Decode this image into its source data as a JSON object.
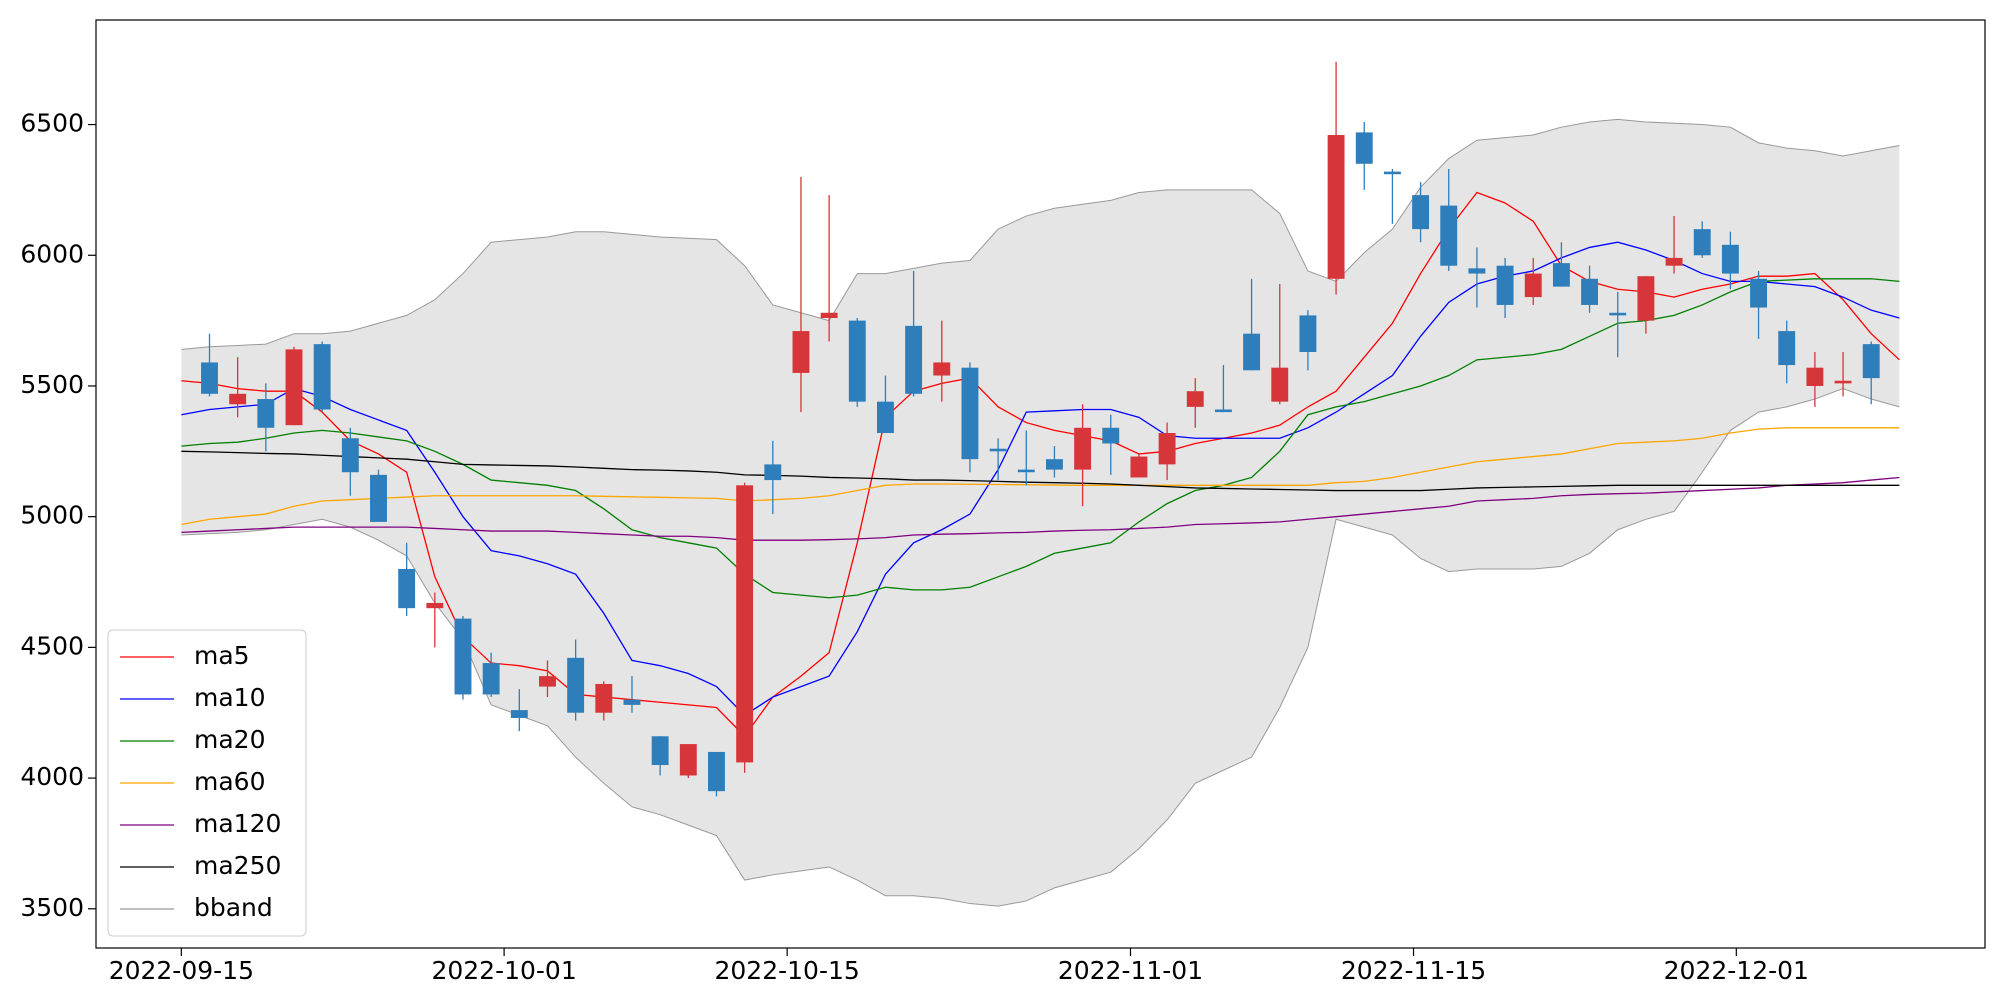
{
  "chart_data": {
    "type": "candlestick",
    "x": [
      0,
      1,
      2,
      3,
      4,
      5,
      6,
      7,
      8,
      9,
      10,
      11,
      12,
      13,
      14,
      15,
      16,
      17,
      18,
      19,
      20,
      21,
      22,
      23,
      24,
      25,
      26,
      27,
      28,
      29,
      30,
      31,
      32,
      33,
      34,
      35,
      36,
      37,
      38,
      39,
      40,
      41,
      42,
      43,
      44,
      45,
      46,
      47,
      48,
      49,
      50,
      51,
      52,
      53,
      54,
      55,
      56,
      57,
      58,
      59,
      60,
      61
    ],
    "xlim": [
      -3.03,
      64.04
    ],
    "xticks": [
      {
        "value": 0,
        "label": "2022-09-15"
      },
      {
        "value": 11.46,
        "label": "2022-10-01"
      },
      {
        "value": 21.51,
        "label": "2022-10-15"
      },
      {
        "value": 33.7,
        "label": "2022-11-01"
      },
      {
        "value": 43.75,
        "label": "2022-11-15"
      },
      {
        "value": 55.21,
        "label": "2022-12-01"
      }
    ],
    "ylim": [
      3350,
      6900
    ],
    "yticks": [
      3500,
      4000,
      4500,
      5000,
      5500,
      6000,
      6500
    ],
    "up_color": "#d6363a",
    "down_color": "#2e7ebb",
    "legend": "lower left",
    "ohlc": {
      "open": [
        null,
        5590,
        5430,
        5450,
        5350,
        5660,
        5300,
        5160,
        4800,
        4650,
        4610,
        4440,
        4260,
        4350,
        4460,
        4250,
        4300,
        4160,
        4010,
        4100,
        4060,
        5200,
        5550,
        5760,
        5750,
        5440,
        5730,
        5540,
        5570,
        5260,
        5180,
        5220,
        5180,
        5340,
        5150,
        5200,
        5420,
        5410,
        5700,
        5440,
        5770,
        5910,
        6470,
        6320,
        6230,
        6190,
        5950,
        5960,
        5840,
        5970,
        5910,
        5780,
        5750,
        5960,
        6100,
        6040,
        5910,
        5710,
        5500,
        5510,
        5660,
        null
      ],
      "high": [
        null,
        5700,
        5610,
        5510,
        5650,
        5670,
        5340,
        5180,
        4900,
        4710,
        4620,
        4480,
        4340,
        4450,
        4530,
        4370,
        4390,
        4160,
        4130,
        4100,
        5130,
        5290,
        6300,
        6230,
        5760,
        5540,
        5940,
        5750,
        5590,
        5300,
        5330,
        5270,
        5430,
        5390,
        5240,
        5360,
        5530,
        5580,
        5910,
        5890,
        5790,
        6740,
        6510,
        6330,
        6280,
        6330,
        6030,
        5990,
        5990,
        6050,
        5960,
        5860,
        5920,
        6150,
        6130,
        6090,
        5940,
        5750,
        5630,
        5630,
        5670,
        null
      ],
      "low": [
        null,
        5460,
        5380,
        5250,
        5350,
        5400,
        5080,
        4980,
        4620,
        4500,
        4300,
        4310,
        4180,
        4310,
        4220,
        4220,
        4250,
        4010,
        4000,
        3930,
        4020,
        5010,
        5400,
        5670,
        5420,
        5320,
        5460,
        5440,
        5170,
        5140,
        5120,
        5150,
        5040,
        5160,
        5150,
        5140,
        5340,
        5400,
        5560,
        5430,
        5560,
        5850,
        6250,
        6120,
        6050,
        5940,
        5800,
        5760,
        5810,
        5880,
        5780,
        5610,
        5700,
        5930,
        5990,
        5870,
        5680,
        5510,
        5420,
        5460,
        5430,
        null
      ],
      "close": [
        null,
        5470,
        5470,
        5340,
        5640,
        5410,
        5170,
        4980,
        4650,
        4670,
        4320,
        4320,
        4230,
        4390,
        4250,
        4360,
        4280,
        4050,
        4130,
        3950,
        5120,
        5140,
        5710,
        5780,
        5440,
        5320,
        5470,
        5590,
        5220,
        5250,
        5170,
        5180,
        5340,
        5280,
        5230,
        5320,
        5480,
        5400,
        5560,
        5570,
        5630,
        6460,
        6350,
        6310,
        6100,
        5960,
        5930,
        5810,
        5930,
        5880,
        5810,
        5770,
        5920,
        5990,
        6000,
        5930,
        5800,
        5580,
        5570,
        5520,
        5530,
        null
      ]
    },
    "band": {
      "name": "bband",
      "color": "#999999",
      "fill": "#e5e5e5",
      "upper": [
        5640,
        5650,
        5655,
        5660,
        5700,
        5700,
        5710,
        5740,
        5770,
        5830,
        5930,
        6050,
        6060,
        6070,
        6090,
        6090,
        6080,
        6070,
        6065,
        6060,
        5960,
        5810,
        5780,
        5750,
        5930,
        5930,
        5950,
        5970,
        5980,
        6100,
        6150,
        6180,
        6195,
        6210,
        6240,
        6250,
        6250,
        6250,
        6250,
        6160,
        5940,
        5900,
        6010,
        6100,
        6260,
        6370,
        6440,
        6450,
        6460,
        6490,
        6510,
        6520,
        6510,
        6505,
        6500,
        6490,
        6430,
        6410,
        6400,
        6380,
        6400,
        6420
      ],
      "lower": [
        4930,
        4935,
        4940,
        4950,
        4970,
        4990,
        4960,
        4910,
        4850,
        4670,
        4530,
        4280,
        4240,
        4200,
        4080,
        3980,
        3890,
        3860,
        3820,
        3780,
        3610,
        3630,
        3645,
        3660,
        3610,
        3550,
        3550,
        3540,
        3520,
        3510,
        3530,
        3580,
        3610,
        3640,
        3730,
        3840,
        3980,
        4030,
        4080,
        4270,
        4500,
        4990,
        4960,
        4930,
        4840,
        4790,
        4800,
        4800,
        4800,
        4810,
        4860,
        4950,
        4990,
        5020,
        5170,
        5330,
        5400,
        5420,
        5450,
        5490,
        5450,
        5420
      ]
    },
    "series": [
      {
        "name": "ma5",
        "color": "#ff0000",
        "values": [
          5520,
          5510,
          5490,
          5480,
          5480,
          5400,
          5290,
          5240,
          5170,
          4770,
          4540,
          4440,
          4430,
          4410,
          4320,
          4310,
          4300,
          4290,
          4280,
          4270,
          4160,
          4310,
          4390,
          4480,
          4900,
          5380,
          5480,
          5510,
          5530,
          5420,
          5360,
          5330,
          5310,
          5290,
          5240,
          5250,
          5280,
          5300,
          5320,
          5350,
          5420,
          5480,
          5610,
          5740,
          5930,
          6100,
          6240,
          6200,
          6130,
          5960,
          5900,
          5870,
          5860,
          5840,
          5870,
          5890,
          5920,
          5920,
          5930,
          5830,
          5700,
          5600
        ]
      },
      {
        "name": "ma10",
        "color": "#0000ff",
        "values": [
          5390,
          5410,
          5420,
          5430,
          5490,
          5460,
          5410,
          5370,
          5330,
          5170,
          5000,
          4870,
          4850,
          4820,
          4780,
          4630,
          4450,
          4430,
          4400,
          4350,
          4240,
          4310,
          4350,
          4390,
          4560,
          4780,
          4900,
          4950,
          5010,
          5180,
          5400,
          5405,
          5410,
          5410,
          5380,
          5310,
          5300,
          5300,
          5300,
          5300,
          5340,
          5400,
          5470,
          5540,
          5690,
          5820,
          5890,
          5920,
          5940,
          5990,
          6030,
          6050,
          6020,
          5980,
          5930,
          5900,
          5900,
          5890,
          5880,
          5840,
          5790,
          5760
        ]
      },
      {
        "name": "ma20",
        "color": "#008000",
        "values": [
          5270,
          5280,
          5285,
          5300,
          5320,
          5330,
          5320,
          5305,
          5290,
          5250,
          5200,
          5140,
          5130,
          5120,
          5100,
          5030,
          4950,
          4920,
          4900,
          4880,
          4780,
          4710,
          4700,
          4690,
          4700,
          4730,
          4720,
          4720,
          4730,
          4770,
          4810,
          4860,
          4880,
          4900,
          4980,
          5050,
          5100,
          5120,
          5150,
          5250,
          5390,
          5420,
          5440,
          5470,
          5500,
          5540,
          5600,
          5610,
          5620,
          5640,
          5690,
          5740,
          5750,
          5770,
          5810,
          5860,
          5900,
          5905,
          5910,
          5910,
          5910,
          5900
        ]
      },
      {
        "name": "ma60",
        "color": "#ffa500",
        "values": [
          4970,
          4990,
          5000,
          5010,
          5040,
          5060,
          5065,
          5070,
          5075,
          5080,
          5080,
          5080,
          5080,
          5080,
          5080,
          5078,
          5076,
          5074,
          5072,
          5070,
          5060,
          5065,
          5070,
          5080,
          5100,
          5120,
          5125,
          5125,
          5124,
          5123,
          5122,
          5121,
          5120,
          5120,
          5120,
          5120,
          5120,
          5120,
          5120,
          5120,
          5120,
          5130,
          5135,
          5150,
          5170,
          5190,
          5210,
          5220,
          5230,
          5240,
          5260,
          5280,
          5285,
          5290,
          5300,
          5320,
          5335,
          5340,
          5340,
          5340,
          5340,
          5340
        ]
      },
      {
        "name": "ma120",
        "color": "#800080",
        "values": [
          4940,
          4945,
          4950,
          4955,
          4960,
          4960,
          4960,
          4960,
          4960,
          4955,
          4950,
          4945,
          4945,
          4945,
          4940,
          4935,
          4930,
          4925,
          4925,
          4920,
          4910,
          4910,
          4910,
          4912,
          4915,
          4920,
          4930,
          4933,
          4935,
          4938,
          4940,
          4945,
          4948,
          4950,
          4955,
          4960,
          4970,
          4973,
          4976,
          4980,
          4990,
          5000,
          5010,
          5020,
          5030,
          5040,
          5060,
          5065,
          5070,
          5080,
          5085,
          5088,
          5090,
          5095,
          5100,
          5105,
          5110,
          5120,
          5125,
          5130,
          5140,
          5150
        ]
      },
      {
        "name": "ma250",
        "color": "#000000",
        "values": [
          5250,
          5248,
          5245,
          5242,
          5240,
          5235,
          5230,
          5225,
          5220,
          5210,
          5200,
          5198,
          5196,
          5194,
          5190,
          5185,
          5180,
          5178,
          5175,
          5170,
          5160,
          5158,
          5155,
          5150,
          5148,
          5145,
          5140,
          5140,
          5138,
          5135,
          5132,
          5130,
          5128,
          5125,
          5120,
          5115,
          5110,
          5108,
          5106,
          5104,
          5102,
          5100,
          5100,
          5100,
          5100,
          5105,
          5110,
          5112,
          5114,
          5116,
          5118,
          5120,
          5120,
          5120,
          5120,
          5120,
          5120,
          5120,
          5120,
          5120,
          5120,
          5120
        ]
      }
    ]
  }
}
